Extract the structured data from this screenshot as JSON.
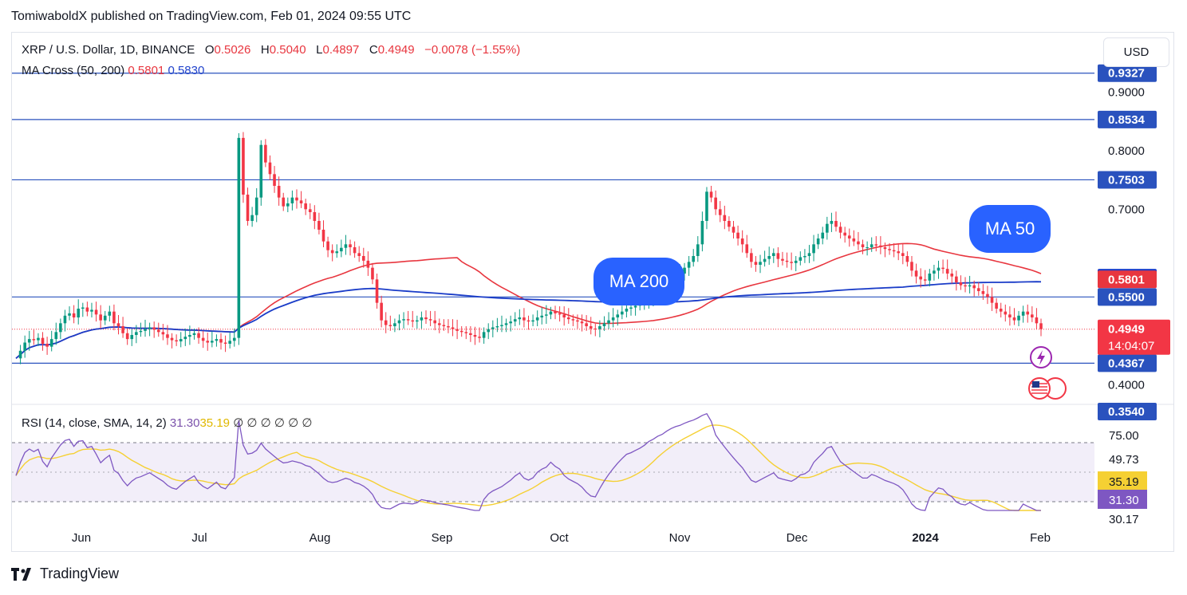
{
  "header": {
    "text": "TomiwaboldX published on TradingView.com, Feb 01, 2024 09:55 UTC"
  },
  "currency_button": "USD",
  "legend": {
    "symbol": "XRP / U.S. Dollar, 1D, BINANCE",
    "o_label": "O",
    "o_value": "0.5026",
    "h_label": "H",
    "h_value": "0.5040",
    "l_label": "L",
    "l_value": "0.4897",
    "c_label": "C",
    "c_value": "0.4949",
    "change": "−0.0078 (−1.55%)",
    "ma_label": "MA Cross (50, 200)",
    "ma50_value": "0.5801",
    "ma200_value": "0.5830",
    "rsi_label": "RSI (14, close, SMA, 14, 2)",
    "rsi_value": "31.30",
    "rsi_sma_value": "35.19",
    "rsi_extra": "∅ ∅ ∅ ∅ ∅ ∅"
  },
  "annotations": {
    "ma200": "MA 200",
    "ma50": "MA 50"
  },
  "branding": "TradingView",
  "colors": {
    "up": "#089981",
    "down": "#f23645",
    "ma50": "#e8363f",
    "ma200": "#1a3cc8",
    "hline": "#2a52be",
    "rsi": "#7e57c2",
    "rsi_sma": "#f5d033"
  },
  "chart_data": {
    "type": "candlestick",
    "price_axis_ticks": [
      "0.9000",
      "0.8000",
      "0.7000",
      "0.4000"
    ],
    "price_labels": [
      {
        "text": "0.9327",
        "value": 0.9327,
        "color": "#2a52be"
      },
      {
        "text": "0.8534",
        "value": 0.8534,
        "color": "#2a52be"
      },
      {
        "text": "0.7503",
        "value": 0.7503,
        "color": "#2a52be"
      },
      {
        "text": "0.5830",
        "value": 0.583,
        "color": "#1a3cc8"
      },
      {
        "text": "0.5801",
        "value": 0.5801,
        "color": "#e8363f"
      },
      {
        "text": "0.5500",
        "value": 0.55,
        "color": "#2a52be"
      },
      {
        "text": "0.4367",
        "value": 0.4367,
        "color": "#2a52be"
      },
      {
        "text": "0.3540",
        "value": 0.354,
        "color": "#2a52be"
      }
    ],
    "last_price": {
      "value": "0.4949",
      "countdown": "14:04:07"
    },
    "horizontal_levels": [
      0.9327,
      0.8534,
      0.7503,
      0.55,
      0.4367
    ],
    "x_ticks": [
      "Jun",
      "Jul",
      "Aug",
      "Sep",
      "Oct",
      "Nov",
      "Dec",
      "2024",
      "Feb"
    ],
    "close_series": [
      0.445,
      0.458,
      0.472,
      0.478,
      0.476,
      0.48,
      0.47,
      0.465,
      0.478,
      0.49,
      0.505,
      0.518,
      0.522,
      0.515,
      0.53,
      0.532,
      0.525,
      0.528,
      0.52,
      0.51,
      0.518,
      0.525,
      0.505,
      0.5,
      0.488,
      0.478,
      0.485,
      0.49,
      0.492,
      0.495,
      0.498,
      0.494,
      0.49,
      0.486,
      0.48,
      0.476,
      0.474,
      0.478,
      0.482,
      0.485,
      0.488,
      0.48,
      0.475,
      0.472,
      0.475,
      0.478,
      0.472,
      0.47,
      0.475,
      0.48,
      0.822,
      0.725,
      0.68,
      0.69,
      0.72,
      0.81,
      0.78,
      0.76,
      0.74,
      0.72,
      0.705,
      0.71,
      0.72,
      0.715,
      0.71,
      0.7,
      0.695,
      0.68,
      0.665,
      0.645,
      0.63,
      0.625,
      0.628,
      0.634,
      0.64,
      0.635,
      0.625,
      0.62,
      0.612,
      0.6,
      0.58,
      0.54,
      0.51,
      0.502,
      0.5,
      0.505,
      0.51,
      0.512,
      0.51,
      0.508,
      0.51,
      0.515,
      0.512,
      0.51,
      0.505,
      0.502,
      0.5,
      0.498,
      0.495,
      0.492,
      0.49,
      0.488,
      0.485,
      0.482,
      0.48,
      0.49,
      0.495,
      0.498,
      0.5,
      0.502,
      0.505,
      0.508,
      0.512,
      0.515,
      0.51,
      0.508,
      0.51,
      0.515,
      0.518,
      0.52,
      0.525,
      0.522,
      0.52,
      0.515,
      0.512,
      0.51,
      0.508,
      0.505,
      0.5,
      0.496,
      0.495,
      0.5,
      0.505,
      0.51,
      0.515,
      0.52,
      0.525,
      0.53,
      0.532,
      0.535,
      0.538,
      0.542,
      0.548,
      0.552,
      0.558,
      0.562,
      0.57,
      0.578,
      0.585,
      0.59,
      0.6,
      0.61,
      0.62,
      0.64,
      0.68,
      0.73,
      0.72,
      0.7,
      0.69,
      0.68,
      0.67,
      0.66,
      0.65,
      0.64,
      0.625,
      0.61,
      0.605,
      0.61,
      0.615,
      0.62,
      0.625,
      0.615,
      0.612,
      0.61,
      0.608,
      0.612,
      0.618,
      0.62,
      0.625,
      0.64,
      0.65,
      0.66,
      0.675,
      0.68,
      0.67,
      0.66,
      0.655,
      0.65,
      0.645,
      0.64,
      0.635,
      0.635,
      0.64,
      0.638,
      0.635,
      0.632,
      0.63,
      0.628,
      0.625,
      0.62,
      0.61,
      0.595,
      0.585,
      0.58,
      0.578,
      0.59,
      0.595,
      0.6,
      0.598,
      0.59,
      0.585,
      0.575,
      0.57,
      0.568,
      0.57,
      0.565,
      0.56,
      0.555,
      0.55,
      0.54,
      0.53,
      0.525,
      0.52,
      0.515,
      0.51,
      0.518,
      0.525,
      0.52,
      0.515,
      0.505,
      0.495
    ],
    "rsi": {
      "upper": 75.0,
      "lower": 30.17,
      "labels": [
        "75.00",
        "49.73",
        "35.19",
        "31.30",
        "30.17"
      ]
    }
  }
}
